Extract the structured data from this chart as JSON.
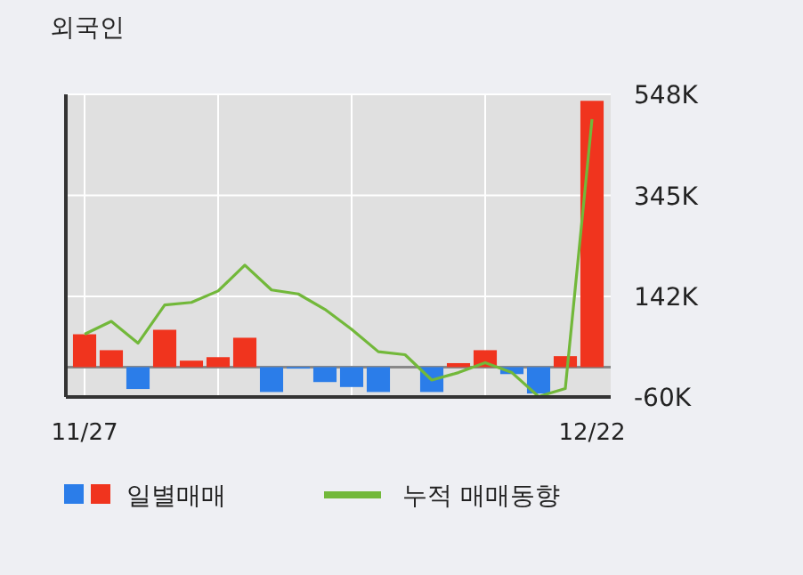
{
  "chart_data": {
    "type": "bar",
    "title": "외국인",
    "categories": [
      "11/27",
      null,
      null,
      null,
      null,
      null,
      null,
      null,
      null,
      null,
      null,
      null,
      null,
      null,
      null,
      null,
      null,
      null,
      null,
      "12/22"
    ],
    "ylim": [
      -60000,
      548000
    ],
    "yticks": [
      {
        "value": -60000,
        "label": "-60K"
      },
      {
        "value": 142000,
        "label": "142K"
      },
      {
        "value": 345000,
        "label": "345K"
      },
      {
        "value": 548000,
        "label": "548K"
      }
    ],
    "grid": true,
    "legend": "bottom",
    "series": [
      {
        "name": "일별매매",
        "values": [
          66000,
          34000,
          -44000,
          75000,
          13000,
          20000,
          59000,
          -50000,
          -3000,
          -30000,
          -40000,
          -50000,
          0,
          -50000,
          8000,
          34000,
          -14000,
          -53000,
          22000,
          535000
        ],
        "colors": [
          "#f0341e",
          "#f0341e",
          "#2b7de9",
          "#f0341e",
          "#f0341e",
          "#f0341e",
          "#f0341e",
          "#2b7de9",
          "#2b7de9",
          "#2b7de9",
          "#2b7de9",
          "#2b7de9",
          "#f0341e",
          "#2b7de9",
          "#f0341e",
          "#f0341e",
          "#2b7de9",
          "#2b7de9",
          "#f0341e",
          "#f0341e"
        ]
      },
      {
        "name": "누적 매매동향",
        "type": "line",
        "color": "#72b83a",
        "values": [
          66000,
          92000,
          48000,
          125000,
          130000,
          153000,
          205000,
          155000,
          147000,
          116000,
          76000,
          31000,
          25000,
          -26000,
          -11000,
          9000,
          -11000,
          -59000,
          -43000,
          498000
        ]
      }
    ]
  }
}
